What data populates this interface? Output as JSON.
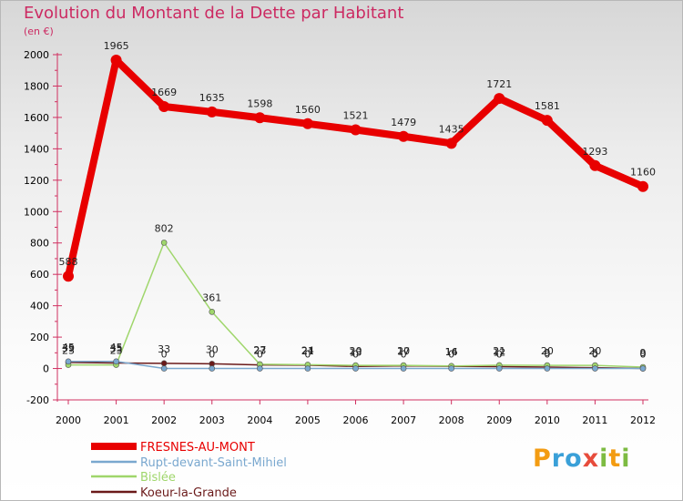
{
  "header": {
    "title": "Evolution du Montant de la Dette par Habitant",
    "subtitle": "(en €)"
  },
  "brand": {
    "letters": [
      "P",
      "r",
      "o",
      "x",
      "i",
      "t",
      "i"
    ],
    "colors": [
      "#f39c12",
      "#3aa0d8",
      "#3aa0d8",
      "#e74c3c",
      "#7dbb42",
      "#f39c12",
      "#7dbb42"
    ]
  },
  "chart_data": {
    "type": "line",
    "title": "Evolution du Montant de la Dette par Habitant",
    "ylabel": "(en €)",
    "xlabel": "",
    "x": [
      "2000",
      "2001",
      "2002",
      "2003",
      "2004",
      "2005",
      "2006",
      "2007",
      "2008",
      "2009",
      "2010",
      "2011",
      "2012"
    ],
    "ylim": [
      -200,
      2000
    ],
    "yticks": [
      -200,
      0,
      200,
      400,
      600,
      800,
      1000,
      1200,
      1400,
      1600,
      1800,
      2000
    ],
    "grid": false,
    "legend": "bottom-left",
    "series": [
      {
        "name": "FRESNES-AU-MONT",
        "color": "#e80000",
        "width": 8,
        "marker": 6,
        "values": [
          588,
          1965,
          1669,
          1635,
          1598,
          1560,
          1521,
          1479,
          1435,
          1721,
          1581,
          1293,
          1160
        ],
        "labels": [
          "588",
          "1965",
          "1669",
          "1635",
          "1598",
          "1560",
          "1521",
          "1479",
          "1435",
          "1721",
          "1581",
          "1293",
          "1160"
        ]
      },
      {
        "name": "Rupt-devant-Saint-Mihiel",
        "color": "#7aa8cf",
        "width": 1.5,
        "marker": 3,
        "values": [
          45,
          45,
          0,
          0,
          0,
          0,
          0,
          0,
          0,
          0,
          0,
          0,
          0
        ],
        "labels": [
          "45",
          "45",
          "0",
          "0",
          "0",
          "0",
          "0",
          "0",
          "0",
          "0",
          "0",
          "0",
          "0"
        ]
      },
      {
        "name": "Bislée",
        "color": "#9fd66b",
        "width": 1.5,
        "marker": 3,
        "values": [
          23,
          23,
          802,
          361,
          27,
          24,
          20,
          20,
          16,
          21,
          20,
          20,
          9
        ],
        "labels": [
          "23",
          "23",
          "802",
          "361",
          "27",
          "24",
          "20",
          "20",
          "16",
          "21",
          "20",
          "20",
          "9"
        ]
      },
      {
        "name": "Koeur-la-Grande",
        "color": "#6b1a1a",
        "width": 1.5,
        "marker": 3,
        "values": [
          39,
          35,
          33,
          30,
          23,
          21,
          13,
          17,
          14,
          12,
          9,
          5,
          0
        ],
        "labels": [
          "39",
          "35",
          "33",
          "30",
          "23",
          "21",
          "13",
          "17",
          "14",
          "12",
          "9",
          "5",
          "0"
        ]
      }
    ]
  }
}
